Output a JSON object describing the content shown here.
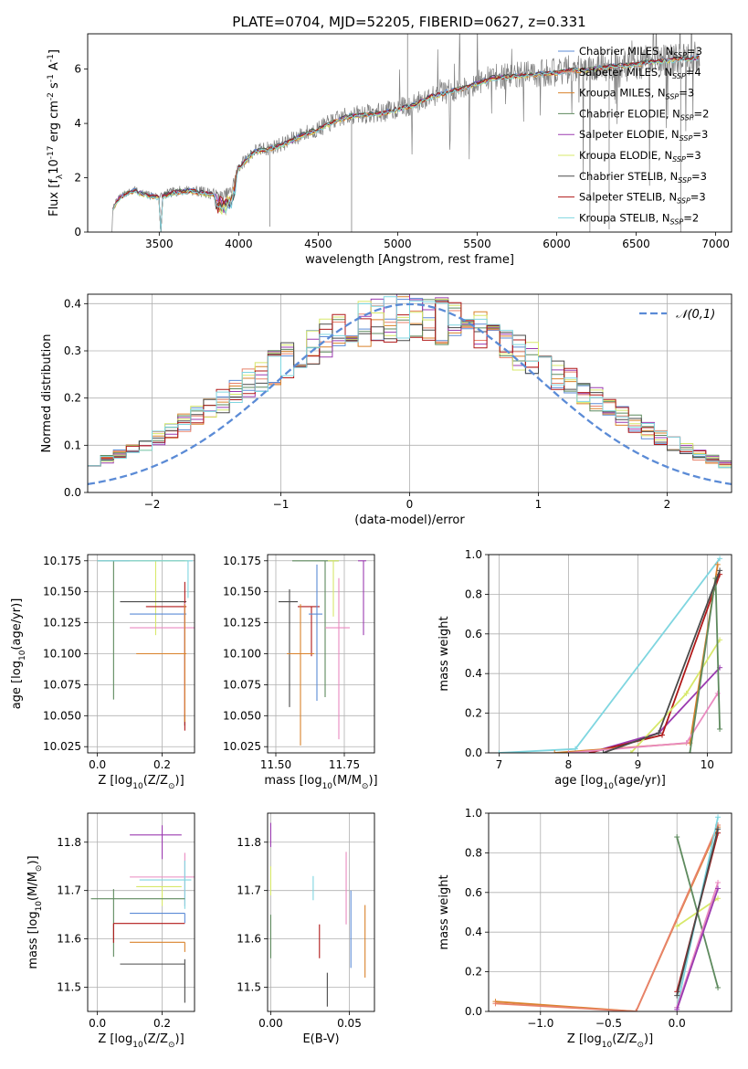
{
  "figure_title": "PLATE=0704, MJD=52205, FIBERID=0627, z=0.331",
  "colors": {
    "chabrier_miles": "#5b8bd6",
    "salpeter_miles": "#e8826b",
    "kroupa_miles": "#d9822b",
    "chabrier_elodie": "#5e8a5e",
    "salpeter_elodie": "#9b3bb0",
    "kroupa_elodie": "#d7e86a",
    "chabrier_stelib": "#4a4a4a",
    "salpeter_stelib": "#b01818",
    "kroupa_stelib": "#7fd6e0",
    "pink": "#e98ac0",
    "data": "#808080",
    "normal": "#5b8bd6"
  },
  "chart_data": [
    {
      "id": "spectrum",
      "type": "line",
      "title": "PLATE=0704, MJD=52205, FIBERID=0627, z=0.331",
      "xlabel": "wavelength [Angstrom, rest frame]",
      "ylabel": "Flux [f$_\\lambda$10$^{-17}$ erg cm$^{-2}$ s$^{-1}$ A$^{-1}$]",
      "xlim": [
        3050,
        7100
      ],
      "ylim": [
        0,
        7.3
      ],
      "xticks": [
        3500,
        4000,
        4500,
        5000,
        5500,
        6000,
        6500,
        7000
      ],
      "yticks": [
        0,
        2,
        4,
        6
      ],
      "grid": false,
      "legend_position": "top-right",
      "legend": [
        {
          "label": "Chabrier MILES, N",
          "sub": "SSP",
          "suffix": "=3"
        },
        {
          "label": "Salpeter MILES, N",
          "sub": "SSP",
          "suffix": "=4"
        },
        {
          "label": "Kroupa MILES, N",
          "sub": "SSP",
          "suffix": "=3"
        },
        {
          "label": "Chabrier ELODIE, N",
          "sub": "SSP",
          "suffix": "=2"
        },
        {
          "label": "Salpeter ELODIE, N",
          "sub": "SSP",
          "suffix": "=3"
        },
        {
          "label": "Kroupa ELODIE, N",
          "sub": "SSP",
          "suffix": "=3"
        },
        {
          "label": "Chabrier STELIB, N",
          "sub": "SSP",
          "suffix": "=3"
        },
        {
          "label": "Salpeter STELIB, N",
          "sub": "SSP",
          "suffix": "=3"
        },
        {
          "label": "Kroupa STELIB, N",
          "sub": "SSP",
          "suffix": "=2"
        }
      ],
      "continuum": [
        [
          3200,
          0.0
        ],
        [
          3210,
          0.9
        ],
        [
          3250,
          1.3
        ],
        [
          3300,
          1.45
        ],
        [
          3350,
          1.55
        ],
        [
          3400,
          1.4
        ],
        [
          3450,
          1.35
        ],
        [
          3500,
          1.3
        ],
        [
          3600,
          1.5
        ],
        [
          3700,
          1.55
        ],
        [
          3800,
          1.45
        ],
        [
          3900,
          1.3
        ],
        [
          3950,
          1.5
        ],
        [
          4000,
          2.4
        ],
        [
          4100,
          3.0
        ],
        [
          4200,
          3.1
        ],
        [
          4300,
          3.3
        ],
        [
          4400,
          3.6
        ],
        [
          4500,
          3.8
        ],
        [
          4600,
          4.1
        ],
        [
          4700,
          4.3
        ],
        [
          4800,
          4.35
        ],
        [
          4900,
          4.4
        ],
        [
          5000,
          4.55
        ],
        [
          5100,
          4.7
        ],
        [
          5200,
          5.0
        ],
        [
          5300,
          5.15
        ],
        [
          5400,
          5.3
        ],
        [
          5500,
          5.5
        ],
        [
          5600,
          5.7
        ],
        [
          5700,
          5.75
        ],
        [
          5800,
          5.8
        ],
        [
          5900,
          5.85
        ],
        [
          6000,
          5.9
        ],
        [
          6100,
          6.0
        ],
        [
          6200,
          6.0
        ],
        [
          6300,
          6.1
        ],
        [
          6400,
          6.15
        ],
        [
          6500,
          6.2
        ],
        [
          6600,
          6.3
        ],
        [
          6700,
          6.35
        ],
        [
          6800,
          6.4
        ],
        [
          6900,
          6.45
        ]
      ]
    },
    {
      "id": "residuals",
      "type": "line",
      "xlabel": "(data-model)/error",
      "ylabel": "Normed distribution",
      "xlim": [
        -2.5,
        2.5
      ],
      "ylim": [
        0,
        0.42
      ],
      "xticks": [
        -2,
        -1,
        0,
        1,
        2
      ],
      "yticks": [
        0.0,
        0.1,
        0.2,
        0.3,
        0.4
      ],
      "grid": true,
      "legend_position": "top-right",
      "legend": [
        "$\\mathcal{N}(0,1)$"
      ],
      "bin_width": 0.1
    },
    {
      "id": "age_vs_Z",
      "type": "scatter",
      "xlabel": "Z [log$_{10}$(Z/Z$_\\odot$)]",
      "ylabel": "age  [log$_{10}$(age/yr)]",
      "xlim": [
        -0.03,
        0.3
      ],
      "ylim": [
        10.02,
        10.18
      ],
      "xticks": [
        0.0,
        0.2
      ],
      "yticks": [
        10.025,
        10.05,
        10.075,
        10.1,
        10.125,
        10.15,
        10.175
      ],
      "points": [
        {
          "key": "chabrier_elodie",
          "x": 0.05,
          "xerr": [
            0.05,
            0.22
          ],
          "y": 10.175,
          "yerr": [
            0.112,
            0.0
          ]
        },
        {
          "key": "kroupa_elodie",
          "x": 0.18,
          "xerr": [
            0.08,
            0.1
          ],
          "y": 10.175,
          "yerr": [
            0.06,
            0.0
          ]
        },
        {
          "key": "kroupa_stelib",
          "x": 0.28,
          "xerr": [
            0.28,
            0.015
          ],
          "y": 10.175,
          "yerr": [
            0.03,
            0.0
          ]
        },
        {
          "key": "chabrier_stelib",
          "x": 0.27,
          "xerr": [
            0.2,
            0.005
          ],
          "y": 10.142,
          "yerr": [
            0.1,
            0.0
          ]
        },
        {
          "key": "salpeter_stelib",
          "x": 0.27,
          "xerr": [
            0.12,
            0.005
          ],
          "y": 10.138,
          "yerr": [
            0.1,
            0.02
          ]
        },
        {
          "key": "chabrier_miles",
          "x": 0.27,
          "xerr": [
            0.17,
            0.005
          ],
          "y": 10.132,
          "yerr": [
            0.04,
            0.0
          ]
        },
        {
          "key": "pink",
          "x": 0.27,
          "xerr": [
            0.17,
            0.03
          ],
          "y": 10.121,
          "yerr": [
            0.07,
            0.02
          ]
        },
        {
          "key": "kroupa_miles",
          "x": 0.27,
          "xerr": [
            0.15,
            0.005
          ],
          "y": 10.1,
          "yerr": [
            0.055,
            0.04
          ]
        }
      ]
    },
    {
      "id": "age_vs_mass",
      "type": "scatter",
      "xlabel": "mass [log$_{10}$(M/M$_\\odot$)]",
      "xlim": [
        11.47,
        11.86
      ],
      "ylim": [
        10.02,
        10.18
      ],
      "xticks": [
        11.5,
        11.75
      ],
      "yticks": [
        10.025,
        10.05,
        10.075,
        10.1,
        10.125,
        10.15,
        10.175
      ],
      "points": [
        {
          "key": "chabrier_stelib",
          "x": 11.55,
          "xerr": [
            0.04,
            0.03
          ],
          "y": 10.142,
          "yerr": [
            0.085,
            0.01
          ]
        },
        {
          "key": "salpeter_stelib",
          "x": 11.63,
          "xerr": [
            0.05,
            0.03
          ],
          "y": 10.138,
          "yerr": [
            0.04,
            0.0
          ]
        },
        {
          "key": "kroupa_miles",
          "x": 11.59,
          "xerr": [
            0.05,
            0.05
          ],
          "y": 10.1,
          "yerr": [
            0.074,
            0.04
          ]
        },
        {
          "key": "chabrier_miles",
          "x": 11.65,
          "xerr": [
            0.03,
            0.02
          ],
          "y": 10.132,
          "yerr": [
            0.07,
            0.04
          ]
        },
        {
          "key": "chabrier_elodie",
          "x": 11.68,
          "xerr": [
            0.12,
            0.05
          ],
          "y": 10.175,
          "yerr": [
            0.11,
            0.0
          ]
        },
        {
          "key": "kroupa_elodie",
          "x": 11.71,
          "xerr": [
            0.02,
            0.02
          ],
          "y": 10.175,
          "yerr": [
            0.045,
            0.0
          ]
        },
        {
          "key": "pink",
          "x": 11.73,
          "xerr": [
            0.05,
            0.04
          ],
          "y": 10.121,
          "yerr": [
            0.09,
            0.04
          ]
        },
        {
          "key": "salpeter_elodie",
          "x": 11.82,
          "xerr": [
            0.02,
            0.01
          ],
          "y": 10.175,
          "yerr": [
            0.06,
            0.0
          ]
        }
      ]
    },
    {
      "id": "mass_weight_vs_age",
      "type": "line",
      "xlabel": "age  [log$_{10}$(age/yr)]",
      "ylabel": "mass weight",
      "xlim": [
        6.85,
        10.35
      ],
      "ylim": [
        0,
        1.0
      ],
      "xticks": [
        7,
        8,
        9,
        10
      ],
      "yticks": [
        0.0,
        0.2,
        0.4,
        0.6,
        0.8,
        1.0
      ],
      "grid": true,
      "series": [
        {
          "key": "kroupa_stelib",
          "x": [
            7.0,
            8.1,
            10.18
          ],
          "y": [
            0.0,
            0.02,
            0.98
          ]
        },
        {
          "key": "salpeter_elodie",
          "x": [
            8.3,
            9.3,
            10.18
          ],
          "y": [
            0.0,
            0.1,
            0.43
          ]
        },
        {
          "key": "salpeter_stelib",
          "x": [
            8.3,
            9.35,
            10.18
          ],
          "y": [
            0.0,
            0.09,
            0.9
          ]
        },
        {
          "key": "kroupa_elodie",
          "x": [
            8.9,
            9.7,
            10.18
          ],
          "y": [
            0.0,
            0.3,
            0.57
          ]
        },
        {
          "key": "kroupa_miles",
          "x": [
            7.8,
            9.75,
            10.15
          ],
          "y": [
            0.0,
            0.05,
            0.95
          ]
        },
        {
          "key": "pink",
          "x": [
            8.0,
            9.7,
            10.15
          ],
          "y": [
            0.0,
            0.05,
            0.3
          ]
        },
        {
          "key": "chabrier_elodie",
          "x": [
            9.75,
            10.12,
            10.18
          ],
          "y": [
            0.0,
            0.88,
            0.12
          ]
        },
        {
          "key": "chabrier_stelib",
          "x": [
            8.5,
            9.3,
            10.18
          ],
          "y": [
            0.0,
            0.1,
            0.92
          ]
        }
      ]
    },
    {
      "id": "mass_vs_Z",
      "type": "scatter",
      "xlabel": "Z [log$_{10}$(Z/Z$_\\odot$)]",
      "ylabel": "mass [log$_{10}$(M/M$_\\odot$)]",
      "xlim": [
        -0.03,
        0.3
      ],
      "ylim": [
        11.45,
        11.86
      ],
      "xticks": [
        0.0,
        0.2
      ],
      "yticks": [
        11.5,
        11.6,
        11.7,
        11.8
      ],
      "points": [
        {
          "key": "salpeter_elodie",
          "x": 0.2,
          "xerr": [
            0.1,
            0.06
          ],
          "y": 11.815,
          "yerr": [
            0.05,
            0.02
          ]
        },
        {
          "key": "pink",
          "x": 0.27,
          "xerr": [
            0.17,
            0.03
          ],
          "y": 11.728,
          "yerr": [
            0.06,
            0.05
          ]
        },
        {
          "key": "kroupa_stelib",
          "x": 0.27,
          "xerr": [
            0.14,
            0.02
          ],
          "y": 11.722,
          "yerr": [
            0.06,
            0.04
          ]
        },
        {
          "key": "kroupa_elodie",
          "x": 0.2,
          "xerr": [
            0.08,
            0.06
          ],
          "y": 11.708,
          "yerr": [
            0.04,
            0.0
          ]
        },
        {
          "key": "chabrier_elodie",
          "x": 0.05,
          "xerr": [
            0.07,
            0.22
          ],
          "y": 11.683,
          "yerr": [
            0.12,
            0.02
          ]
        },
        {
          "key": "chabrier_miles",
          "x": 0.27,
          "xerr": [
            0.17,
            0.0
          ],
          "y": 11.653,
          "yerr": [
            0.02,
            0.0
          ]
        },
        {
          "key": "salpeter_stelib",
          "x": 0.05,
          "xerr": [
            0.0,
            0.22
          ],
          "y": 11.632,
          "yerr": [
            0.04,
            0.0
          ]
        },
        {
          "key": "kroupa_miles",
          "x": 0.27,
          "xerr": [
            0.17,
            0.0
          ],
          "y": 11.593,
          "yerr": [
            0.02,
            0.0
          ]
        },
        {
          "key": "chabrier_stelib",
          "x": 0.27,
          "xerr": [
            0.2,
            0.0
          ],
          "y": 11.548,
          "yerr": [
            0.08,
            0.01
          ]
        }
      ]
    },
    {
      "id": "mass_vs_ebv",
      "type": "scatter",
      "xlabel": "E(B-V)",
      "xlim": [
        -0.002,
        0.066
      ],
      "ylim": [
        11.45,
        11.86
      ],
      "xticks": [
        0.0,
        0.05
      ],
      "yticks": [
        11.5,
        11.6,
        11.7,
        11.8
      ],
      "points": [
        {
          "key": "salpeter_elodie",
          "x": 0.0,
          "y": 11.82,
          "yerr": [
            0.03,
            0.02
          ]
        },
        {
          "key": "kroupa_elodie",
          "x": 0.0,
          "y": 11.72,
          "yerr": [
            0.03,
            0.03
          ]
        },
        {
          "key": "chabrier_elodie",
          "x": 0.0,
          "y": 11.62,
          "yerr": [
            0.06,
            0.03
          ]
        },
        {
          "key": "kroupa_stelib",
          "x": 0.027,
          "y": 11.7,
          "yerr": [
            0.02,
            0.03
          ]
        },
        {
          "key": "salpeter_stelib",
          "x": 0.031,
          "y": 11.6,
          "yerr": [
            0.04,
            0.03
          ]
        },
        {
          "key": "chabrier_stelib",
          "x": 0.036,
          "y": 11.5,
          "yerr": [
            0.04,
            0.03
          ]
        },
        {
          "key": "pink",
          "x": 0.048,
          "y": 11.72,
          "yerr": [
            0.09,
            0.06
          ]
        },
        {
          "key": "chabrier_miles",
          "x": 0.051,
          "y": 11.63,
          "yerr": [
            0.09,
            0.07
          ]
        },
        {
          "key": "kroupa_miles",
          "x": 0.06,
          "y": 11.6,
          "yerr": [
            0.08,
            0.07
          ]
        }
      ]
    },
    {
      "id": "mass_weight_vs_Z",
      "type": "line",
      "xlabel": "Z [log$_{10}$(Z/Z$_\\odot$)]",
      "ylabel": "mass weight",
      "xlim": [
        -1.38,
        0.4
      ],
      "ylim": [
        0,
        1.0
      ],
      "xticks": [
        -1.0,
        -0.5,
        0.0
      ],
      "yticks": [
        0.0,
        0.2,
        0.4,
        0.6,
        0.8,
        1.0
      ],
      "grid": true,
      "series": [
        {
          "key": "kroupa_miles",
          "x": [
            -1.33,
            -0.3,
            0.3
          ],
          "y": [
            0.05,
            0.0,
            0.93
          ]
        },
        {
          "key": "salpeter_miles",
          "x": [
            -1.33,
            -0.3,
            0.3
          ],
          "y": [
            0.04,
            0.0,
            0.94
          ]
        },
        {
          "key": "chabrier_elodie",
          "x": [
            0.0,
            0.3
          ],
          "y": [
            0.88,
            0.12
          ]
        },
        {
          "key": "kroupa_elodie",
          "x": [
            0.0,
            0.3
          ],
          "y": [
            0.43,
            0.57
          ]
        },
        {
          "key": "kroupa_stelib",
          "x": [
            0.0,
            0.3
          ],
          "y": [
            0.02,
            0.98
          ]
        },
        {
          "key": "salpeter_stelib",
          "x": [
            0.0,
            0.3
          ],
          "y": [
            0.1,
            0.9
          ]
        },
        {
          "key": "chabrier_stelib",
          "x": [
            0.0,
            0.3
          ],
          "y": [
            0.08,
            0.92
          ]
        },
        {
          "key": "pink",
          "x": [
            0.0,
            0.3
          ],
          "y": [
            0.02,
            0.65
          ]
        },
        {
          "key": "salpeter_elodie",
          "x": [
            0.0,
            0.3
          ],
          "y": [
            0.01,
            0.62
          ]
        }
      ]
    }
  ]
}
